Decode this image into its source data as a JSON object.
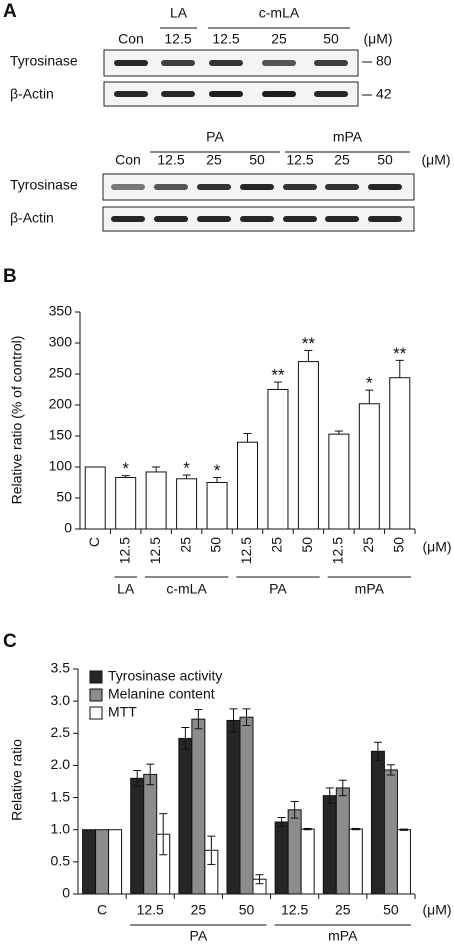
{
  "panel_a": {
    "label": "A",
    "blots": [
      {
        "group_labels": [
          "LA",
          "c-mLA"
        ],
        "lane_labels": [
          "Con",
          "12.5",
          "12.5",
          "25",
          "50"
        ],
        "unit": "(μM)",
        "rows": [
          {
            "name": "Tyrosinase",
            "mw": "80"
          },
          {
            "name": "β-Actin",
            "mw": "42"
          }
        ]
      },
      {
        "group_labels": [
          "PA",
          "mPA"
        ],
        "lane_labels": [
          "Con",
          "12.5",
          "25",
          "50",
          "12.5",
          "25",
          "50"
        ],
        "unit": "(μM)",
        "rows": [
          {
            "name": "Tyrosinase"
          },
          {
            "name": "β-Actin"
          }
        ]
      }
    ]
  },
  "chart_data": [
    {
      "type": "bar",
      "panel_label": "B",
      "y_label": "Relative ratio (% of control)",
      "x_unit": "(μM)",
      "categories": [
        "C",
        "12.5",
        "12.5",
        "25",
        "50",
        "12.5",
        "25",
        "50",
        "12.5",
        "25",
        "50"
      ],
      "category_groups": [
        null,
        "LA",
        "c-mLA",
        "c-mLA",
        "c-mLA",
        "PA",
        "PA",
        "PA",
        "mPA",
        "mPA",
        "mPA"
      ],
      "values": [
        100,
        83,
        92,
        81,
        75,
        140,
        225,
        270,
        153,
        202,
        244
      ],
      "errors": [
        0,
        3,
        8,
        6,
        8,
        14,
        12,
        18,
        5,
        22,
        28
      ],
      "significance": [
        null,
        "*",
        null,
        "*",
        "*",
        null,
        "**",
        "**",
        null,
        "*",
        "**"
      ],
      "color": "#ffffff",
      "ylim": [
        0,
        350
      ],
      "yticks": [
        0,
        50,
        100,
        150,
        200,
        250,
        300,
        350
      ],
      "grid": false
    },
    {
      "type": "grouped_bar",
      "panel_label": "C",
      "y_label": "Relative ratio",
      "x_unit": "(μM)",
      "categories": [
        "C",
        "12.5",
        "25",
        "50",
        "12.5",
        "25",
        "50"
      ],
      "category_groups": [
        null,
        "PA",
        "PA",
        "PA",
        "mPA",
        "mPA",
        "mPA"
      ],
      "series": [
        {
          "name": "Tyrosinase activity",
          "color": "#262626",
          "values": [
            1.0,
            1.8,
            2.42,
            2.7,
            1.12,
            1.53,
            2.22
          ],
          "errors": [
            0,
            0.12,
            0.17,
            0.18,
            0.07,
            0.12,
            0.14
          ]
        },
        {
          "name": "Melanine content",
          "color": "#8c8c8c",
          "values": [
            1.0,
            1.86,
            2.72,
            2.75,
            1.31,
            1.65,
            1.93
          ],
          "errors": [
            0,
            0.16,
            0.15,
            0.13,
            0.13,
            0.12,
            0.08
          ]
        },
        {
          "name": "MTT",
          "color": "#ffffff",
          "values": [
            1.0,
            0.93,
            0.68,
            0.23,
            1.01,
            1.01,
            1.0
          ],
          "errors": [
            0,
            0.32,
            0.22,
            0.07,
            0.01,
            0.01,
            0.01
          ]
        }
      ],
      "ylim": [
        0,
        3.5
      ],
      "yticks": [
        0,
        0.5,
        {
          "value": 1,
          "label": "1.0"
        },
        1.5,
        {
          "value": 2,
          "label": "2.0"
        },
        2.5,
        {
          "value": 3,
          "label": "3.0"
        },
        3.5
      ],
      "legend": "upper-left",
      "grid": false
    }
  ]
}
